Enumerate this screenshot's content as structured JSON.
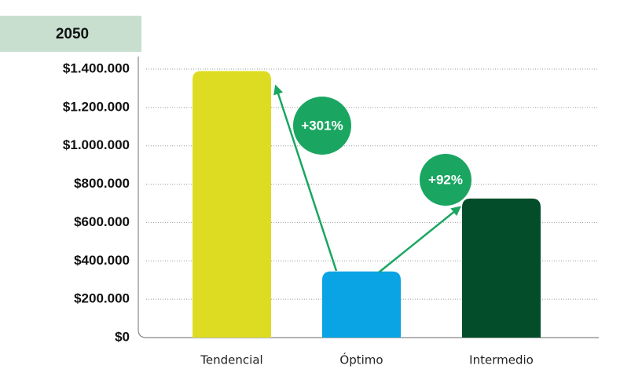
{
  "chart_data": {
    "type": "bar",
    "title": "2050",
    "categories": [
      "Tendencial",
      "Óptimo",
      "Intermedio"
    ],
    "values": [
      1390000,
      345000,
      725000
    ],
    "colors": [
      "#dedc22",
      "#0aa3e3",
      "#034d2b"
    ],
    "ylim": [
      0,
      1400000
    ],
    "yticks": [
      {
        "value": 0,
        "label": "$0"
      },
      {
        "value": 200000,
        "label": "$200.000"
      },
      {
        "value": 400000,
        "label": "$400.000"
      },
      {
        "value": 600000,
        "label": "$600.000"
      },
      {
        "value": 800000,
        "label": "$800.000"
      },
      {
        "value": 1000000,
        "label": "$1.000.000"
      },
      {
        "value": 1200000,
        "label": "$1.200.000"
      },
      {
        "value": 1400000,
        "label": "$1.400.000"
      }
    ],
    "grid": true,
    "annotations": [
      "+301%",
      "+92%"
    ]
  }
}
